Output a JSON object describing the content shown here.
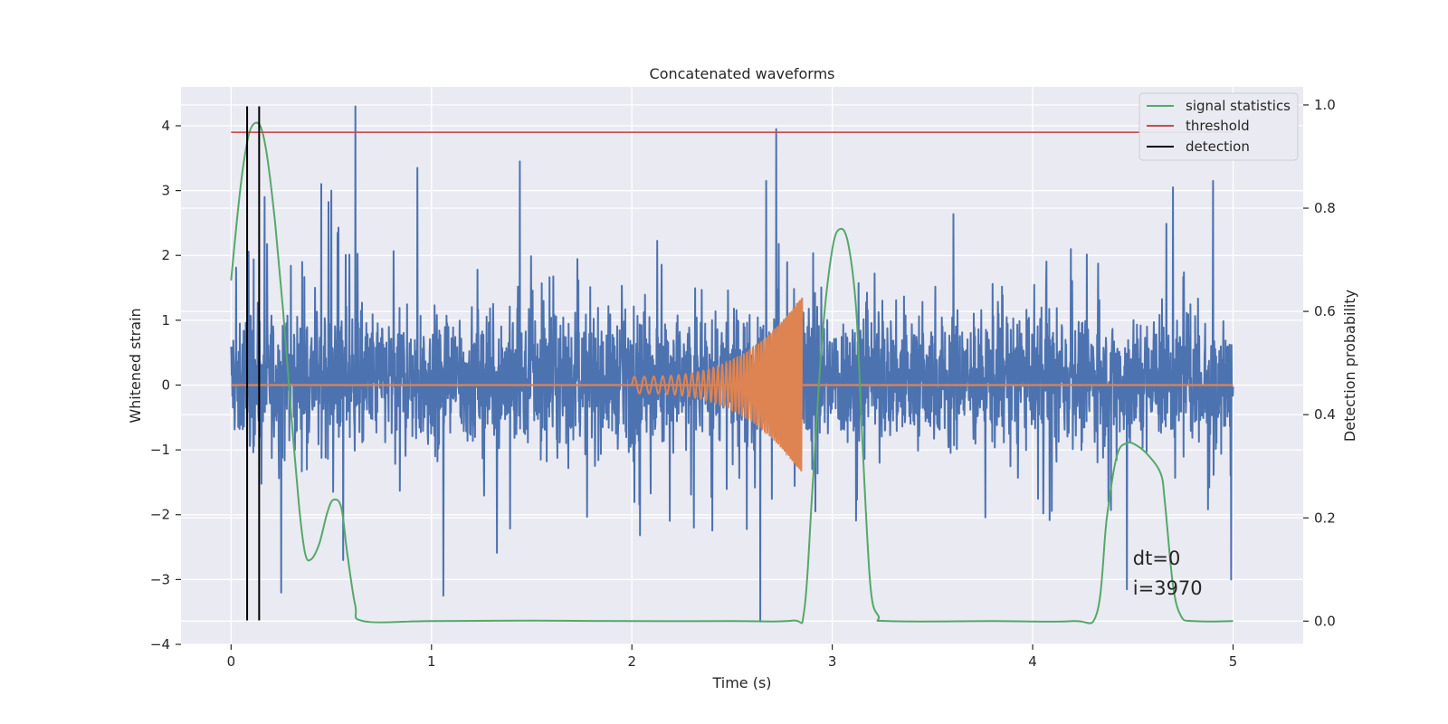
{
  "chart_data": {
    "type": "line",
    "title": "Concatenated waveforms",
    "xlabel": "Time (s)",
    "ylabel": "Whitened strain",
    "y2label": "Detection probability",
    "xlim": [
      -0.25,
      5.35
    ],
    "ylim": [
      -4.0,
      4.6
    ],
    "y2lim": [
      -0.045,
      1.035
    ],
    "x_ticks": [
      0,
      1,
      2,
      3,
      4,
      5
    ],
    "y_ticks": [
      -4,
      -3,
      -2,
      -1,
      0,
      1,
      2,
      3,
      4
    ],
    "y2_ticks": [
      0.0,
      0.2,
      0.4,
      0.6,
      0.8,
      1.0
    ],
    "x_tick_labels": [
      "0",
      "1",
      "2",
      "3",
      "4",
      "5"
    ],
    "y_tick_labels": [
      "−4",
      "−3",
      "−2",
      "−1",
      "0",
      "1",
      "2",
      "3",
      "4"
    ],
    "y2_tick_labels": [
      "0.0",
      "0.2",
      "0.4",
      "0.6",
      "0.8",
      "1.0"
    ],
    "grid": true,
    "legend_position": "top-right",
    "legend": [
      {
        "label": "signal statistics",
        "color": "#55a868"
      },
      {
        "label": "threshold",
        "color": "#c44e52"
      },
      {
        "label": "detection",
        "color": "#000000"
      }
    ],
    "series": [
      {
        "name": "noise",
        "color": "#4c72b0",
        "axis": "left",
        "x_range": [
          0,
          5
        ],
        "envelope": [
          -1.7,
          1.9
        ],
        "peaks": [
          {
            "x": 0.62,
            "y": 4.3
          },
          {
            "x": 0.93,
            "y": 3.35
          },
          {
            "x": 1.44,
            "y": 3.45
          },
          {
            "x": 2.67,
            "y": 3.15
          },
          {
            "x": 2.72,
            "y": 3.95
          },
          {
            "x": 0.45,
            "y": 3.1
          },
          {
            "x": 0.5,
            "y": 3.0
          },
          {
            "x": 4.7,
            "y": 3.05
          },
          {
            "x": 4.9,
            "y": 3.15
          },
          {
            "x": 2.64,
            "y": -3.65
          },
          {
            "x": 1.06,
            "y": -3.25
          },
          {
            "x": 0.25,
            "y": -3.2
          },
          {
            "x": 4.99,
            "y": -3.0
          },
          {
            "x": 4.47,
            "y": -3.15
          },
          {
            "x": 0.56,
            "y": -2.7
          }
        ]
      },
      {
        "name": "chirp",
        "color": "#dd8452",
        "axis": "left",
        "baseline": 0,
        "x_start": 2.0,
        "x_end": 2.85,
        "amplitude_start": 0.13,
        "amplitude_end": 1.38,
        "frequency_start": 20,
        "frequency_end": 120
      },
      {
        "name": "signal statistics",
        "color": "#55a868",
        "axis": "right",
        "points": [
          [
            0.0,
            0.66
          ],
          [
            0.03,
            0.78
          ],
          [
            0.06,
            0.88
          ],
          [
            0.09,
            0.945
          ],
          [
            0.12,
            0.965
          ],
          [
            0.15,
            0.955
          ],
          [
            0.18,
            0.9
          ],
          [
            0.22,
            0.77
          ],
          [
            0.26,
            0.6
          ],
          [
            0.3,
            0.4
          ],
          [
            0.34,
            0.22
          ],
          [
            0.37,
            0.13
          ],
          [
            0.4,
            0.12
          ],
          [
            0.44,
            0.15
          ],
          [
            0.48,
            0.21
          ],
          [
            0.51,
            0.235
          ],
          [
            0.55,
            0.22
          ],
          [
            0.58,
            0.13
          ],
          [
            0.62,
            0.03
          ],
          [
            0.66,
            0.0
          ],
          [
            1.0,
            0.0
          ],
          [
            1.5,
            0.001
          ],
          [
            2.0,
            0.0
          ],
          [
            2.5,
            0.0
          ],
          [
            2.8,
            0.001
          ],
          [
            2.86,
            0.02
          ],
          [
            2.9,
            0.25
          ],
          [
            2.95,
            0.55
          ],
          [
            3.0,
            0.72
          ],
          [
            3.04,
            0.76
          ],
          [
            3.08,
            0.73
          ],
          [
            3.12,
            0.6
          ],
          [
            3.15,
            0.35
          ],
          [
            3.19,
            0.07
          ],
          [
            3.23,
            0.01
          ],
          [
            3.28,
            0.0
          ],
          [
            3.8,
            0.0
          ],
          [
            4.2,
            0.0
          ],
          [
            4.32,
            0.015
          ],
          [
            4.37,
            0.2
          ],
          [
            4.42,
            0.32
          ],
          [
            4.47,
            0.345
          ],
          [
            4.52,
            0.34
          ],
          [
            4.58,
            0.32
          ],
          [
            4.64,
            0.285
          ],
          [
            4.66,
            0.23
          ],
          [
            4.7,
            0.07
          ],
          [
            4.74,
            0.01
          ],
          [
            4.8,
            0.0
          ],
          [
            5.0,
            0.0
          ]
        ]
      },
      {
        "name": "threshold",
        "color": "#c44e52",
        "axis": "left",
        "x_range": [
          0,
          5
        ],
        "y": 3.9
      },
      {
        "name": "detection",
        "color": "#000000",
        "axis": "left",
        "x": [
          0.08,
          0.14
        ],
        "y_range": [
          -3.63,
          4.3
        ]
      }
    ],
    "annotations": [
      {
        "text": "dt=0",
        "x": 4.5,
        "y": -2.77
      },
      {
        "text": "i=3970",
        "x": 4.5,
        "y": -3.23
      }
    ]
  }
}
